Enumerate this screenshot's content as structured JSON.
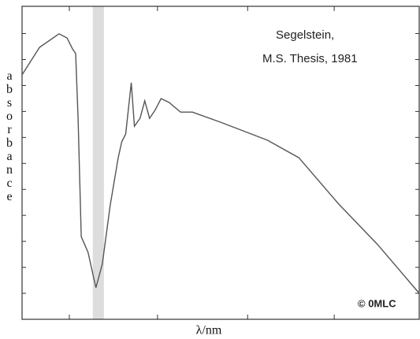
{
  "chart_data": {
    "type": "line",
    "xlabel": "λ/nm",
    "ylabel": "absorbance",
    "annotations": [
      "Segelstein,",
      "M.S. Thesis, 1981"
    ],
    "copyright": "© 0MLC",
    "xlim": [
      0,
      100
    ],
    "ylim": [
      0,
      100
    ],
    "xticks": [
      11.9,
      34.1,
      56.8,
      78.6
    ],
    "yticks": [
      8.3,
      16.6,
      24.9,
      33.2,
      41.5,
      49.8,
      58.1,
      66.4,
      74.7,
      83,
      91.3
    ],
    "shaded_region": [
      17.8,
      20.6
    ],
    "color": "#555555",
    "x": [
      0,
      4.4,
      9.3,
      11.3,
      12.7,
      13.5,
      14.1,
      14.9,
      16.6,
      18.6,
      20.2,
      22.2,
      24.2,
      25.1,
      26.1,
      27.5,
      28.3,
      29.7,
      30.9,
      32.1,
      33.5,
      35.0,
      37.0,
      39.9,
      42.9,
      49.9,
      61.8,
      69.7,
      79.6,
      89.5,
      100
    ],
    "values": [
      78.1,
      86.9,
      91.2,
      89.9,
      86.4,
      84.9,
      64.2,
      26.4,
      21.4,
      10.1,
      17.6,
      36.5,
      51.6,
      56.7,
      59.2,
      75.6,
      61.7,
      64.2,
      69.8,
      64.2,
      66.8,
      70.5,
      69.3,
      66.2,
      66.2,
      63.0,
      57.2,
      51.6,
      37.0,
      23.9,
      8.3
    ]
  }
}
